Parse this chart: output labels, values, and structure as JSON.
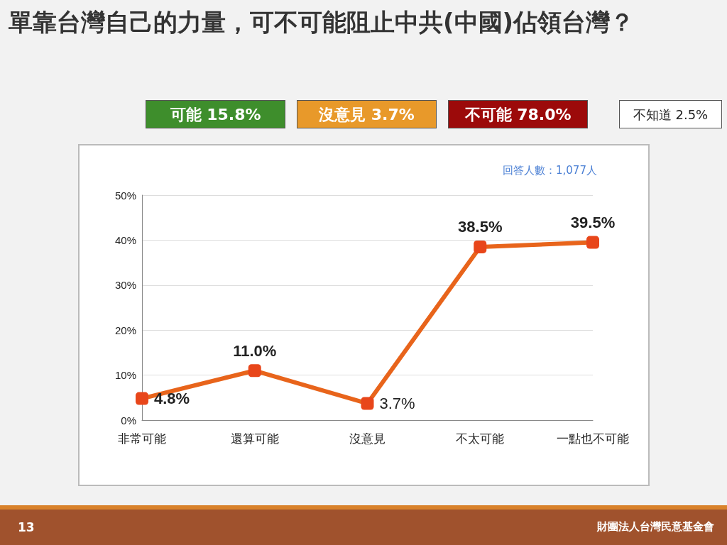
{
  "chart_data": {
    "type": "line",
    "title": "單靠台灣自己的力量，可不可能阻止中共(中國)佔領台灣？",
    "annotations": [
      "可能 15.8%",
      "沒意見 3.7%",
      "不可能 78.0%",
      "不知道 2.5%",
      "回答人數：1,077人",
      "13",
      "財團法人台灣民意基金會"
    ],
    "categories": [
      "非常可能",
      "還算可能",
      "沒意見",
      "不太可能",
      "一點也不可能"
    ],
    "series": [
      {
        "color": "#e8641b",
        "values": [
          4.8,
          11.0,
          3.7,
          38.5,
          39.5
        ],
        "value_labels": [
          "4.8%",
          "11.0%",
          "3.7%",
          "38.5%",
          "39.5%"
        ]
      }
    ],
    "ylim": [
      0,
      50
    ],
    "yticks": [
      {
        "value": 0,
        "label": "0%"
      },
      {
        "value": 10,
        "label": "10%"
      },
      {
        "value": 20,
        "label": "20%"
      },
      {
        "value": 30,
        "label": "30%"
      },
      {
        "value": 40,
        "label": "40%"
      },
      {
        "value": 50,
        "label": "50%"
      }
    ],
    "grid": "y",
    "marker": "square",
    "line_style": "solid"
  }
}
